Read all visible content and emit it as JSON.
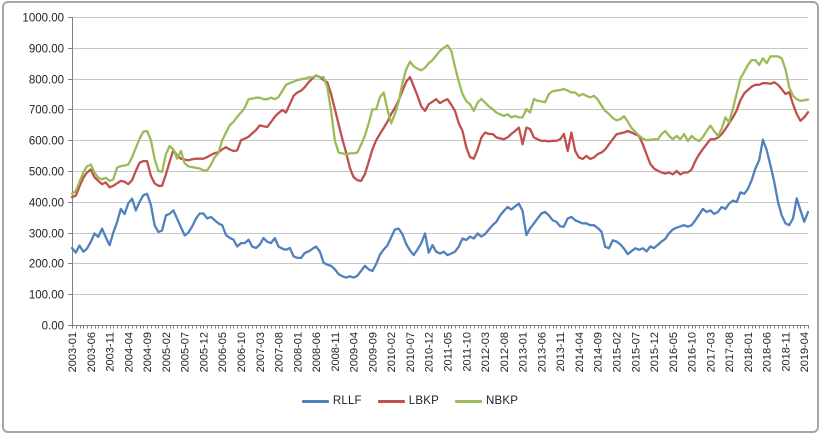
{
  "chart_data": {
    "type": "line",
    "title": "",
    "xlabel": "",
    "ylabel": "",
    "ylim": [
      0,
      1000
    ],
    "y_tick_step": 100,
    "y_tick_labels": [
      "0.00",
      "100.00",
      "200.00",
      "300.00",
      "400.00",
      "500.00",
      "600.00",
      "700.00",
      "800.00",
      "900.00",
      "1000.00"
    ],
    "x_tick_label_every": 5,
    "x_tick_labels": [
      "2003-01",
      "2003-06",
      "2003-11",
      "2004-04",
      "2004-09",
      "2005-02",
      "2005-07",
      "2005-12",
      "2006-05",
      "2006-10",
      "2007-03",
      "2007-08",
      "2008-01",
      "2008-06",
      "2008-11",
      "2009-04",
      "2009-09",
      "2010-02",
      "2010-07",
      "2010-12",
      "2011-05",
      "2011-10",
      "2012-03",
      "2012-08",
      "2013-01",
      "2013-06",
      "2013-11",
      "2014-04",
      "2014-09",
      "2015-02",
      "2015-07",
      "2015-12",
      "2016-05",
      "2016-10",
      "2017-03",
      "2017-08",
      "2018-01",
      "2018-06",
      "2018-11",
      "2019-04"
    ],
    "grid": "horizontal",
    "legend_position": "bottom",
    "colors": {
      "gridline": "#c6c6c6",
      "axis": "#808080",
      "tick": "#808080",
      "label_text": "#1f1f1f",
      "frame_border": "#a6a6a6"
    },
    "categories": [
      "2003-01",
      "2003-02",
      "2003-03",
      "2003-04",
      "2003-05",
      "2003-06",
      "2003-07",
      "2003-08",
      "2003-09",
      "2003-10",
      "2003-11",
      "2003-12",
      "2004-01",
      "2004-02",
      "2004-03",
      "2004-04",
      "2004-05",
      "2004-06",
      "2004-07",
      "2004-08",
      "2004-09",
      "2004-10",
      "2004-11",
      "2004-12",
      "2005-01",
      "2005-02",
      "2005-03",
      "2005-04",
      "2005-05",
      "2005-06",
      "2005-07",
      "2005-08",
      "2005-09",
      "2005-10",
      "2005-11",
      "2005-12",
      "2006-01",
      "2006-02",
      "2006-03",
      "2006-04",
      "2006-05",
      "2006-06",
      "2006-07",
      "2006-08",
      "2006-09",
      "2006-10",
      "2006-11",
      "2006-12",
      "2007-01",
      "2007-02",
      "2007-03",
      "2007-04",
      "2007-05",
      "2007-06",
      "2007-07",
      "2007-08",
      "2007-09",
      "2007-10",
      "2007-11",
      "2007-12",
      "2008-01",
      "2008-02",
      "2008-03",
      "2008-04",
      "2008-05",
      "2008-06",
      "2008-07",
      "2008-08",
      "2008-09",
      "2008-10",
      "2008-11",
      "2008-12",
      "2009-01",
      "2009-02",
      "2009-03",
      "2009-04",
      "2009-05",
      "2009-06",
      "2009-07",
      "2009-08",
      "2009-09",
      "2009-10",
      "2009-11",
      "2009-12",
      "2010-01",
      "2010-02",
      "2010-03",
      "2010-04",
      "2010-05",
      "2010-06",
      "2010-07",
      "2010-08",
      "2010-09",
      "2010-10",
      "2010-11",
      "2010-12",
      "2011-01",
      "2011-02",
      "2011-03",
      "2011-04",
      "2011-05",
      "2011-06",
      "2011-07",
      "2011-08",
      "2011-09",
      "2011-10",
      "2011-11",
      "2011-12",
      "2012-01",
      "2012-02",
      "2012-03",
      "2012-04",
      "2012-05",
      "2012-06",
      "2012-07",
      "2012-08",
      "2012-09",
      "2012-10",
      "2012-11",
      "2012-12",
      "2013-01",
      "2013-02",
      "2013-03",
      "2013-04",
      "2013-05",
      "2013-06",
      "2013-07",
      "2013-08",
      "2013-09",
      "2013-10",
      "2013-11",
      "2013-12",
      "2014-01",
      "2014-02",
      "2014-03",
      "2014-04",
      "2014-05",
      "2014-06",
      "2014-07",
      "2014-08",
      "2014-09",
      "2014-10",
      "2014-11",
      "2014-12",
      "2015-01",
      "2015-02",
      "2015-03",
      "2015-04",
      "2015-05",
      "2015-06",
      "2015-07",
      "2015-08",
      "2015-09",
      "2015-10",
      "2015-11",
      "2015-12",
      "2016-01",
      "2016-02",
      "2016-03",
      "2016-04",
      "2016-05",
      "2016-06",
      "2016-07",
      "2016-08",
      "2016-09",
      "2016-10",
      "2016-11",
      "2016-12",
      "2017-01",
      "2017-02",
      "2017-03",
      "2017-04",
      "2017-05",
      "2017-06",
      "2017-07",
      "2017-08",
      "2017-09",
      "2017-10",
      "2017-11",
      "2017-12",
      "2018-01",
      "2018-02",
      "2018-03",
      "2018-04",
      "2018-05",
      "2018-06",
      "2018-07",
      "2018-08",
      "2018-09",
      "2018-10",
      "2018-11",
      "2018-12",
      "2019-01",
      "2019-02",
      "2019-03",
      "2019-04",
      "2019-05"
    ],
    "series": [
      {
        "name": "RLLF",
        "color": "#4F81BD",
        "values": [
          250,
          235,
          258,
          238,
          248,
          270,
          297,
          286,
          313,
          285,
          259,
          300,
          334,
          377,
          360,
          395,
          410,
          372,
          400,
          421,
          426,
          390,
          324,
          302,
          307,
          356,
          361,
          372,
          345,
          318,
          291,
          300,
          320,
          345,
          362,
          362,
          346,
          351,
          340,
          330,
          324,
          292,
          283,
          277,
          255,
          266,
          266,
          277,
          255,
          250,
          261,
          282,
          270,
          266,
          282,
          255,
          248,
          244,
          250,
          223,
          218,
          218,
          234,
          239,
          247,
          255,
          239,
          202,
          196,
          192,
          181,
          165,
          158,
          154,
          158,
          154,
          160,
          176,
          192,
          181,
          175,
          198,
          228,
          245,
          258,
          285,
          310,
          313,
          295,
          263,
          242,
          227,
          245,
          265,
          297,
          235,
          259,
          238,
          232,
          238,
          227,
          232,
          238,
          255,
          281,
          276,
          287,
          281,
          297,
          287,
          295,
          310,
          324,
          335,
          356,
          370,
          383,
          375,
          385,
          394,
          370,
          292,
          314,
          330,
          346,
          362,
          367,
          356,
          340,
          335,
          320,
          319,
          346,
          351,
          340,
          335,
          330,
          330,
          324,
          324,
          315,
          303,
          254,
          249,
          275,
          271,
          262,
          248,
          230,
          240,
          249,
          244,
          249,
          239,
          255,
          250,
          260,
          271,
          280,
          298,
          310,
          316,
          320,
          324,
          319,
          324,
          340,
          358,
          377,
          367,
          372,
          361,
          367,
          383,
          377,
          394,
          404,
          399,
          431,
          426,
          442,
          470,
          508,
          535,
          602,
          568,
          519,
          465,
          400,
          356,
          330,
          324,
          346,
          411,
          372,
          335,
          367
        ]
      },
      {
        "name": "LBKP",
        "color": "#C0504D",
        "values": [
          415,
          420,
          450,
          478,
          495,
          505,
          480,
          468,
          457,
          463,
          447,
          452,
          460,
          468,
          465,
          457,
          470,
          500,
          527,
          532,
          532,
          484,
          460,
          452,
          452,
          489,
          530,
          568,
          550,
          540,
          537,
          535,
          538,
          540,
          540,
          540,
          545,
          552,
          558,
          561,
          570,
          577,
          570,
          565,
          567,
          600,
          605,
          611,
          622,
          633,
          648,
          645,
          643,
          659,
          676,
          688,
          698,
          690,
          717,
          744,
          755,
          761,
          772,
          788,
          800,
          810,
          805,
          795,
          788,
          750,
          701,
          652,
          603,
          560,
          510,
          480,
          470,
          468,
          490,
          530,
          570,
          600,
          620,
          640,
          660,
          685,
          705,
          730,
          760,
          790,
          805,
          775,
          744,
          710,
          695,
          717,
          725,
          733,
          720,
          728,
          733,
          715,
          695,
          655,
          630,
          577,
          545,
          540,
          570,
          608,
          625,
          620,
          620,
          609,
          606,
          603,
          609,
          620,
          630,
          641,
          587,
          641,
          636,
          609,
          603,
          598,
          598,
          596,
          598,
          598,
          603,
          620,
          565,
          625,
          565,
          544,
          539,
          549,
          539,
          544,
          555,
          560,
          570,
          587,
          603,
          619,
          622,
          625,
          630,
          625,
          619,
          614,
          587,
          555,
          523,
          508,
          501,
          495,
          492,
          495,
          489,
          500,
          489,
          495,
          495,
          505,
          532,
          554,
          571,
          587,
          603,
          603,
          608,
          619,
          636,
          655,
          674,
          697,
          730,
          752,
          763,
          774,
          780,
          780,
          785,
          785,
          783,
          788,
          780,
          766,
          750,
          756,
          717,
          685,
          663,
          674,
          691
        ]
      },
      {
        "name": "NBKP",
        "color": "#9BBB59",
        "values": [
          426,
          435,
          465,
          495,
          515,
          521,
          495,
          478,
          473,
          478,
          468,
          473,
          511,
          516,
          518,
          521,
          545,
          575,
          605,
          628,
          630,
          600,
          540,
          500,
          497,
          555,
          581,
          570,
          540,
          565,
          525,
          515,
          513,
          510,
          508,
          502,
          502,
          520,
          545,
          558,
          600,
          625,
          648,
          660,
          676,
          690,
          705,
          733,
          735,
          738,
          738,
          733,
          733,
          738,
          733,
          740,
          760,
          780,
          785,
          790,
          795,
          798,
          800,
          804,
          805,
          808,
          805,
          805,
          772,
          695,
          598,
          560,
          557,
          555,
          557,
          557,
          560,
          585,
          615,
          655,
          700,
          700,
          740,
          755,
          700,
          655,
          685,
          725,
          785,
          830,
          855,
          840,
          832,
          827,
          835,
          850,
          860,
          875,
          890,
          900,
          908,
          890,
          838,
          790,
          750,
          727,
          717,
          695,
          722,
          734,
          722,
          710,
          701,
          690,
          684,
          679,
          684,
          674,
          679,
          674,
          674,
          701,
          690,
          734,
          728,
          726,
          723,
          750,
          759,
          761,
          763,
          766,
          761,
          755,
          755,
          744,
          750,
          744,
          739,
          744,
          732,
          712,
          695,
          685,
          672,
          665,
          668,
          678,
          660,
          640,
          627,
          615,
          605,
          600,
          601,
          603,
          603,
          620,
          630,
          614,
          603,
          614,
          603,
          620,
          597,
          614,
          603,
          597,
          610,
          630,
          647,
          630,
          614,
          636,
          674,
          658,
          702,
          752,
          800,
          822,
          844,
          860,
          860,
          844,
          866,
          850,
          872,
          872,
          872,
          866,
          830,
          772,
          744,
          733,
          728,
          730,
          732
        ]
      }
    ]
  }
}
